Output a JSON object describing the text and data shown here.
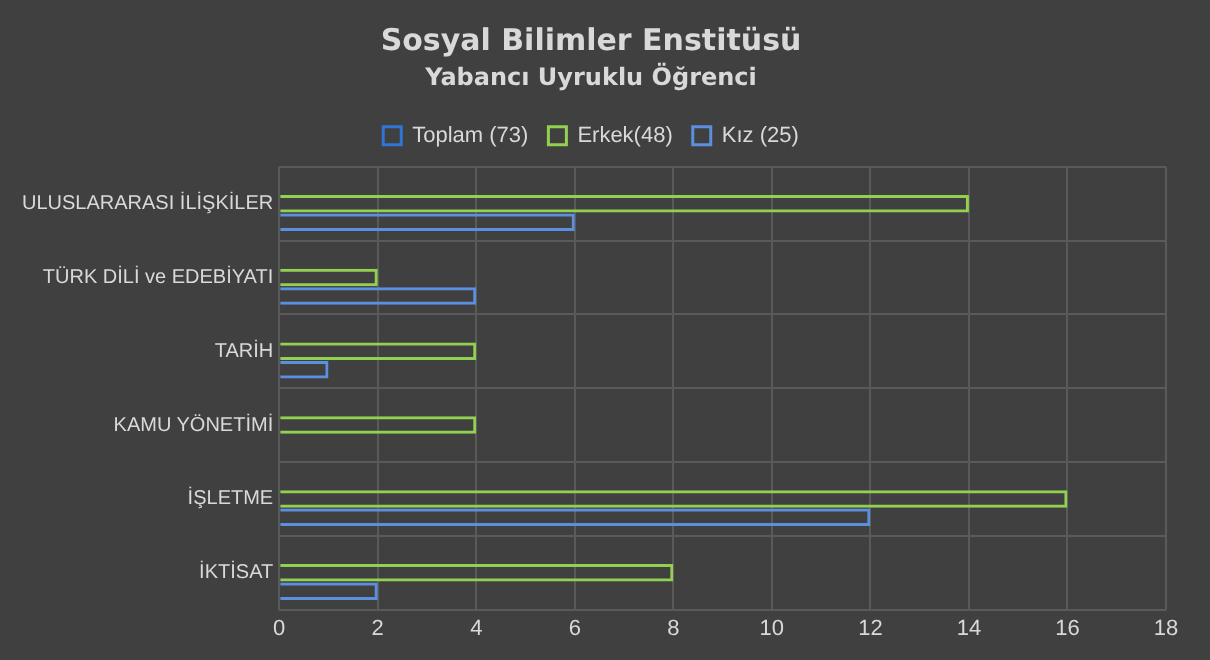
{
  "chart_data": {
    "type": "bar",
    "orientation": "horizontal",
    "title": "Sosyal Bilimler Enstitüsü",
    "subtitle": "Yabancı Uyruklu Öğrenci",
    "categories": [
      "ULUSLARARASI İLİŞKİLER",
      "TÜRK DİLİ ve EDEBİYATI",
      "TARİH",
      "KAMU YÖNETİMİ",
      "İŞLETME",
      "İKTİSAT"
    ],
    "series": [
      {
        "name": "Toplam (73)",
        "color": "#2e75d6",
        "values": [
          null,
          null,
          null,
          null,
          null,
          null
        ]
      },
      {
        "name": "Erkek(48)",
        "color": "#92d050",
        "values": [
          14,
          2,
          4,
          4,
          16,
          8
        ]
      },
      {
        "name": "Kız (25)",
        "color": "#5b8fe0",
        "values": [
          6,
          4,
          1,
          0,
          12,
          2
        ]
      }
    ],
    "xlim": [
      0,
      18
    ],
    "xticks": [
      0,
      2,
      4,
      6,
      8,
      10,
      12,
      14,
      16,
      18
    ],
    "grid": true,
    "legend": "top"
  }
}
